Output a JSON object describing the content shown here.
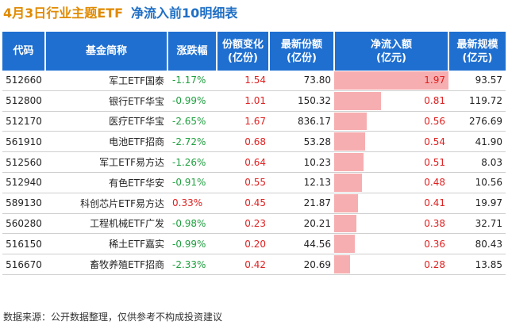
{
  "title": {
    "main": "4月3日行业主题ETF",
    "sub": "净流入前10明细表"
  },
  "table": {
    "headers": {
      "code": "代码",
      "name": "基金简称",
      "change": "涨跌幅",
      "share_change_l1": "份额变化",
      "share_change_l2": "(亿份)",
      "latest_share_l1": "最新份额",
      "latest_share_l2": "(亿份)",
      "net_inflow_l1": "净流入额",
      "net_inflow_l2": "(亿元)",
      "scale_l1": "最新规模",
      "scale_l2": "(亿元)"
    },
    "bar_max": 1.97,
    "rows": [
      {
        "code": "512660",
        "name": "军工ETF国泰",
        "change": "-1.17%",
        "share_change": "1.54",
        "latest_share": "73.80",
        "net_inflow": "1.97",
        "scale": "93.57"
      },
      {
        "code": "512800",
        "name": "银行ETF华宝",
        "change": "-0.99%",
        "share_change": "1.01",
        "latest_share": "150.32",
        "net_inflow": "0.81",
        "scale": "119.72"
      },
      {
        "code": "512170",
        "name": "医疗ETF华宝",
        "change": "-2.65%",
        "share_change": "1.67",
        "latest_share": "836.17",
        "net_inflow": "0.56",
        "scale": "276.69"
      },
      {
        "code": "561910",
        "name": "电池ETF招商",
        "change": "-2.72%",
        "share_change": "0.68",
        "latest_share": "53.28",
        "net_inflow": "0.54",
        "scale": "41.90"
      },
      {
        "code": "512560",
        "name": "军工ETF易方达",
        "change": "-1.26%",
        "share_change": "0.64",
        "latest_share": "10.23",
        "net_inflow": "0.51",
        "scale": "8.03"
      },
      {
        "code": "512940",
        "name": "有色ETF华安",
        "change": "-0.91%",
        "share_change": "0.55",
        "latest_share": "12.13",
        "net_inflow": "0.48",
        "scale": "10.56"
      },
      {
        "code": "589130",
        "name": "科创芯片ETF易方达",
        "change": "0.33%",
        "share_change": "0.45",
        "latest_share": "21.87",
        "net_inflow": "0.41",
        "scale": "19.97"
      },
      {
        "code": "560280",
        "name": "工程机械ETF广发",
        "change": "-0.98%",
        "share_change": "0.23",
        "latest_share": "20.21",
        "net_inflow": "0.38",
        "scale": "32.71"
      },
      {
        "code": "516150",
        "name": "稀土ETF嘉实",
        "change": "-0.99%",
        "share_change": "0.20",
        "latest_share": "44.56",
        "net_inflow": "0.36",
        "scale": "80.43"
      },
      {
        "code": "516670",
        "name": "畜牧养殖ETF招商",
        "change": "-2.33%",
        "share_change": "0.42",
        "latest_share": "20.69",
        "net_inflow": "0.28",
        "scale": "13.85"
      }
    ]
  },
  "colors": {
    "header_bg": "#1f6fd0",
    "title_main": "#e08a00",
    "title_sub": "#1f6fc5",
    "positive": "#e02020",
    "negative": "#20a040",
    "bar": "#f7aeb0"
  },
  "footer": {
    "source": "数据来源：公开数据整理，仅供参考不构成投资建议"
  }
}
